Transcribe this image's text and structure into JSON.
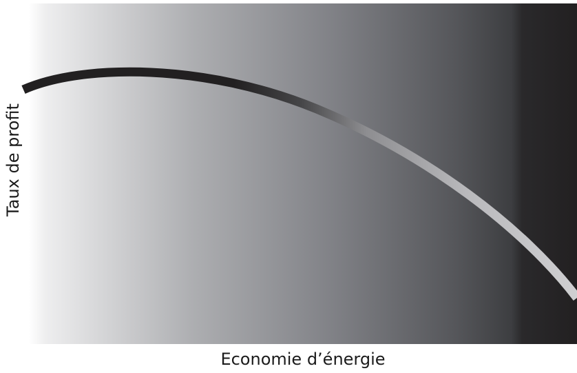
{
  "diagram": {
    "x_axis_label": "Economie d’énergie",
    "y_axis_label": "Taux de profit"
  },
  "colors": {
    "background_light": "#ffffff",
    "background_mid": "#8a8b90",
    "background_dark": "#222021",
    "curve_dark": "#222021",
    "curve_light": "#c8c8ca",
    "text": "#1b1b1b"
  }
}
